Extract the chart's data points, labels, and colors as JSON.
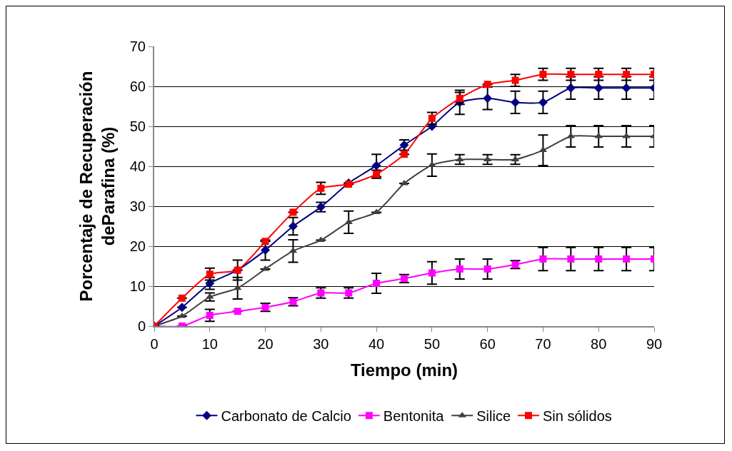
{
  "chart_data": {
    "type": "line",
    "xlabel": "Tiempo (min)",
    "ylabel": "Porcentaje de Recuperación\ndeParafina (%)",
    "x": [
      0,
      5,
      10,
      15,
      20,
      25,
      30,
      35,
      40,
      45,
      50,
      55,
      60,
      65,
      70,
      75,
      80,
      85,
      90
    ],
    "xlim": [
      0,
      90
    ],
    "xticks": [
      0,
      10,
      20,
      30,
      40,
      50,
      60,
      70,
      80,
      90
    ],
    "ylim": [
      0,
      70
    ],
    "yticks": [
      0,
      10,
      20,
      30,
      40,
      50,
      60,
      70
    ],
    "grid": "y",
    "legend": "bottom",
    "line_style": "solid",
    "series": [
      {
        "name": "Carbonato de Calcio",
        "color": "#000080",
        "marker": "diamond",
        "values": [
          0,
          4.7,
          10.7,
          14,
          19,
          25,
          29.8,
          35.8,
          40.2,
          45.3,
          50,
          56,
          57,
          56,
          56,
          59.6,
          59.6,
          59.6,
          59.6
        ],
        "errors": [
          null,
          null,
          1.5,
          2.5,
          2.5,
          2.2,
          1.2,
          null,
          2.8,
          1.3,
          null,
          3,
          2.8,
          2.8,
          2.8,
          2.8,
          2.8,
          2.8,
          2.8
        ]
      },
      {
        "name": "Bentonita",
        "color": "#ff00ff",
        "marker": "square",
        "values": [
          0,
          0,
          2.7,
          3.7,
          4.7,
          6.1,
          8.3,
          8.3,
          10.7,
          11.9,
          13.3,
          14.3,
          14.3,
          15.4,
          16.8,
          16.8,
          16.8,
          16.8,
          16.8
        ],
        "errors": [
          null,
          null,
          1.5,
          null,
          1,
          1,
          1.3,
          1.3,
          2.5,
          1,
          2.8,
          2.5,
          2.5,
          1,
          2.9,
          2.9,
          2.9,
          2.9,
          2.9
        ]
      },
      {
        "name": "Silice",
        "color": "#404040",
        "marker": "triangle",
        "values": [
          0,
          2.5,
          7.3,
          9.5,
          14.3,
          18.8,
          21.5,
          26,
          28.5,
          35.7,
          40.3,
          41.7,
          41.7,
          41.7,
          44,
          47.5,
          47.5,
          47.5,
          47.5
        ],
        "errors": [
          null,
          null,
          1,
          2.7,
          null,
          2.8,
          null,
          2.8,
          null,
          null,
          2.8,
          1.2,
          1.2,
          1.2,
          3.8,
          2.7,
          2.7,
          2.7,
          2.7
        ]
      },
      {
        "name": "Sin sólidos",
        "color": "#ff0000",
        "marker": "square",
        "values": [
          0,
          7,
          13,
          14,
          21.2,
          28.5,
          34.5,
          35.5,
          38,
          43,
          52,
          57,
          60.5,
          61.5,
          63,
          63,
          63,
          63,
          63
        ],
        "errors": [
          null,
          null,
          1.5,
          null,
          null,
          null,
          1.5,
          null,
          1,
          null,
          1.5,
          1.5,
          null,
          1.5,
          1.5,
          1.5,
          1.5,
          1.5,
          1.5
        ]
      }
    ]
  }
}
